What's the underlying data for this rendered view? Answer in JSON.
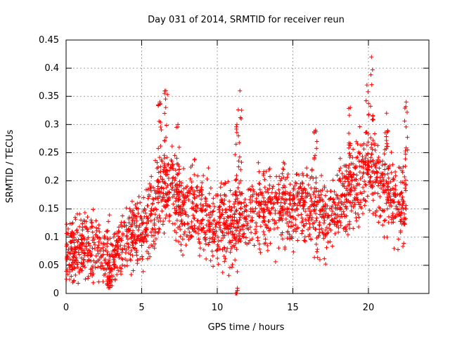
{
  "chart_data": {
    "type": "scatter",
    "title": "Day 031 of 2014, SRMTID for receiver reun",
    "xlabel": "GPS time / hours",
    "ylabel": "SRMTID / TECUs",
    "xlim": [
      0,
      24
    ],
    "ylim": [
      0,
      0.45
    ],
    "x_ticks": [
      0,
      5,
      10,
      15,
      20
    ],
    "x_tick_labels": [
      "0",
      "5",
      "10",
      "15",
      "20"
    ],
    "y_ticks": [
      0,
      0.05,
      0.1,
      0.15,
      0.2,
      0.25,
      0.3,
      0.35,
      0.4,
      0.45
    ],
    "y_tick_labels": [
      "0",
      "0.05",
      "0.1",
      "0.15",
      "0.2",
      "0.25",
      "0.3",
      "0.35",
      "0.4",
      "0.45"
    ],
    "grid": true,
    "marker": "plus",
    "series_color": "#ff0000",
    "trend": {
      "x": [
        0,
        0.5,
        1,
        1.5,
        2,
        2.5,
        3,
        3.5,
        4,
        4.5,
        5,
        5.5,
        6,
        6.5,
        7,
        7.5,
        8,
        8.5,
        9,
        9.5,
        10,
        10.5,
        11,
        11.5,
        12,
        12.5,
        13,
        13.5,
        14,
        14.5,
        15,
        15.5,
        16,
        16.5,
        17,
        17.5,
        18,
        18.5,
        19,
        19.5,
        20,
        20.5,
        21,
        21.5,
        22,
        22.5
      ],
      "y": [
        0.07,
        0.075,
        0.08,
        0.085,
        0.08,
        0.07,
        0.06,
        0.08,
        0.1,
        0.11,
        0.12,
        0.14,
        0.16,
        0.19,
        0.2,
        0.16,
        0.15,
        0.16,
        0.14,
        0.13,
        0.12,
        0.13,
        0.12,
        0.13,
        0.14,
        0.15,
        0.15,
        0.16,
        0.15,
        0.16,
        0.15,
        0.16,
        0.15,
        0.14,
        0.13,
        0.14,
        0.15,
        0.17,
        0.19,
        0.2,
        0.22,
        0.2,
        0.19,
        0.17,
        0.16,
        0.15
      ]
    },
    "spread": 0.035,
    "n_points": 2200,
    "peaks": [
      {
        "x": 6.2,
        "y": 0.34
      },
      {
        "x": 6.6,
        "y": 0.36
      },
      {
        "x": 11.5,
        "y": 0.36
      },
      {
        "x": 11.3,
        "y": 0.3
      },
      {
        "x": 7.4,
        "y": 0.3
      },
      {
        "x": 18.8,
        "y": 0.33
      },
      {
        "x": 19.9,
        "y": 0.37
      },
      {
        "x": 20.2,
        "y": 0.42
      },
      {
        "x": 21.2,
        "y": 0.32
      },
      {
        "x": 22.5,
        "y": 0.34
      },
      {
        "x": 16.5,
        "y": 0.29
      }
    ],
    "lows": [
      {
        "x": 2.8,
        "y": 0.01
      },
      {
        "x": 2.9,
        "y": 0.02
      },
      {
        "x": 11.3,
        "y": 0.0
      }
    ]
  }
}
